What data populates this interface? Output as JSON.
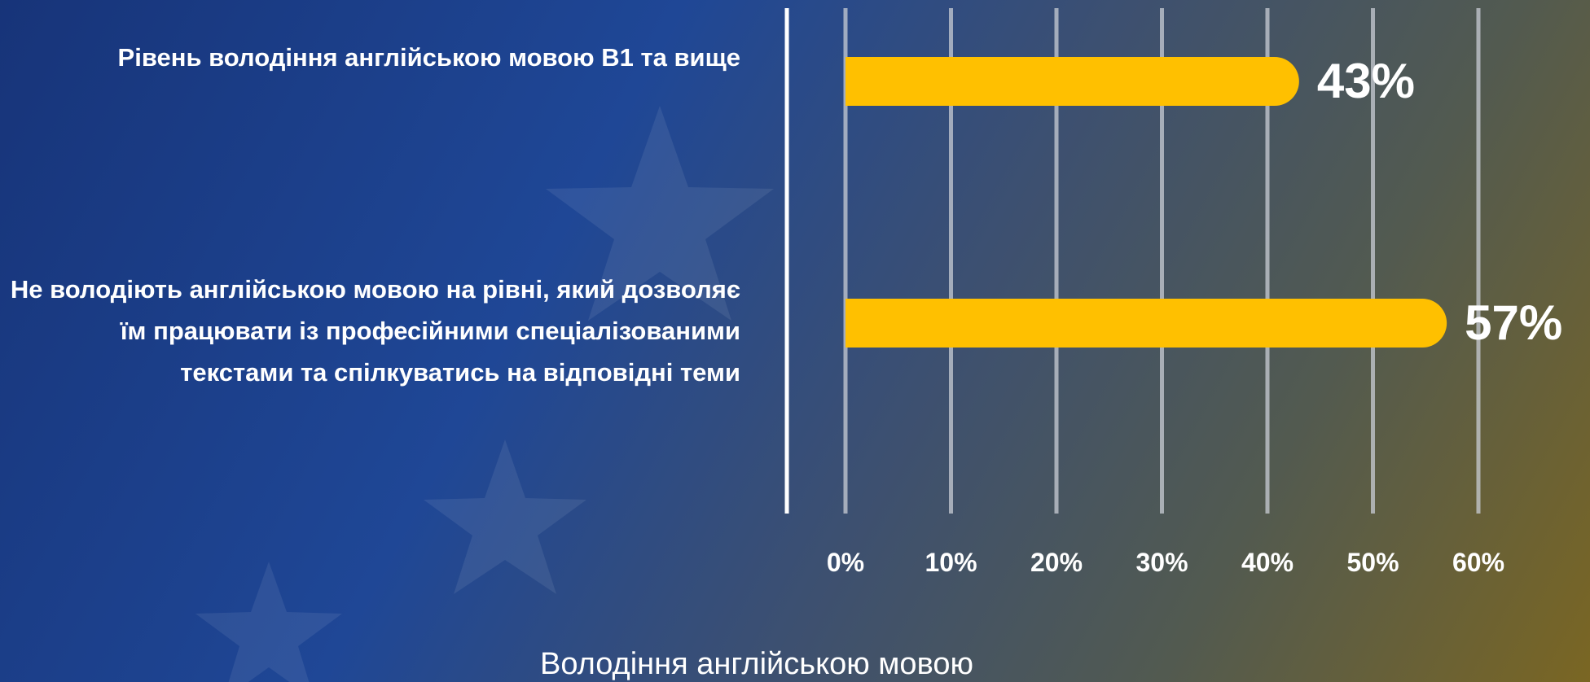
{
  "chart_data": {
    "type": "bar",
    "orientation": "horizontal",
    "categories": [
      "Рівень володіння англійською мовою В1 та вище",
      "Не володіють англійською мовою на рівні, який дозволяє їм працювати із професійними спеціалізованими текстами та спілкуватись на відповідні теми"
    ],
    "values": [
      43,
      57
    ],
    "value_labels": [
      "43%",
      "57%"
    ],
    "color": "#ffc000",
    "xlim": [
      0,
      60
    ],
    "xticks": [
      {
        "value": 0,
        "label": "0%"
      },
      {
        "value": 10,
        "label": "10%"
      },
      {
        "value": 20,
        "label": "20%"
      },
      {
        "value": 30,
        "label": "30%"
      },
      {
        "value": 40,
        "label": "40%"
      },
      {
        "value": 50,
        "label": "50%"
      },
      {
        "value": 60,
        "label": "60%"
      }
    ],
    "xlabel": "Володіння англійською мовою",
    "grid": true
  }
}
